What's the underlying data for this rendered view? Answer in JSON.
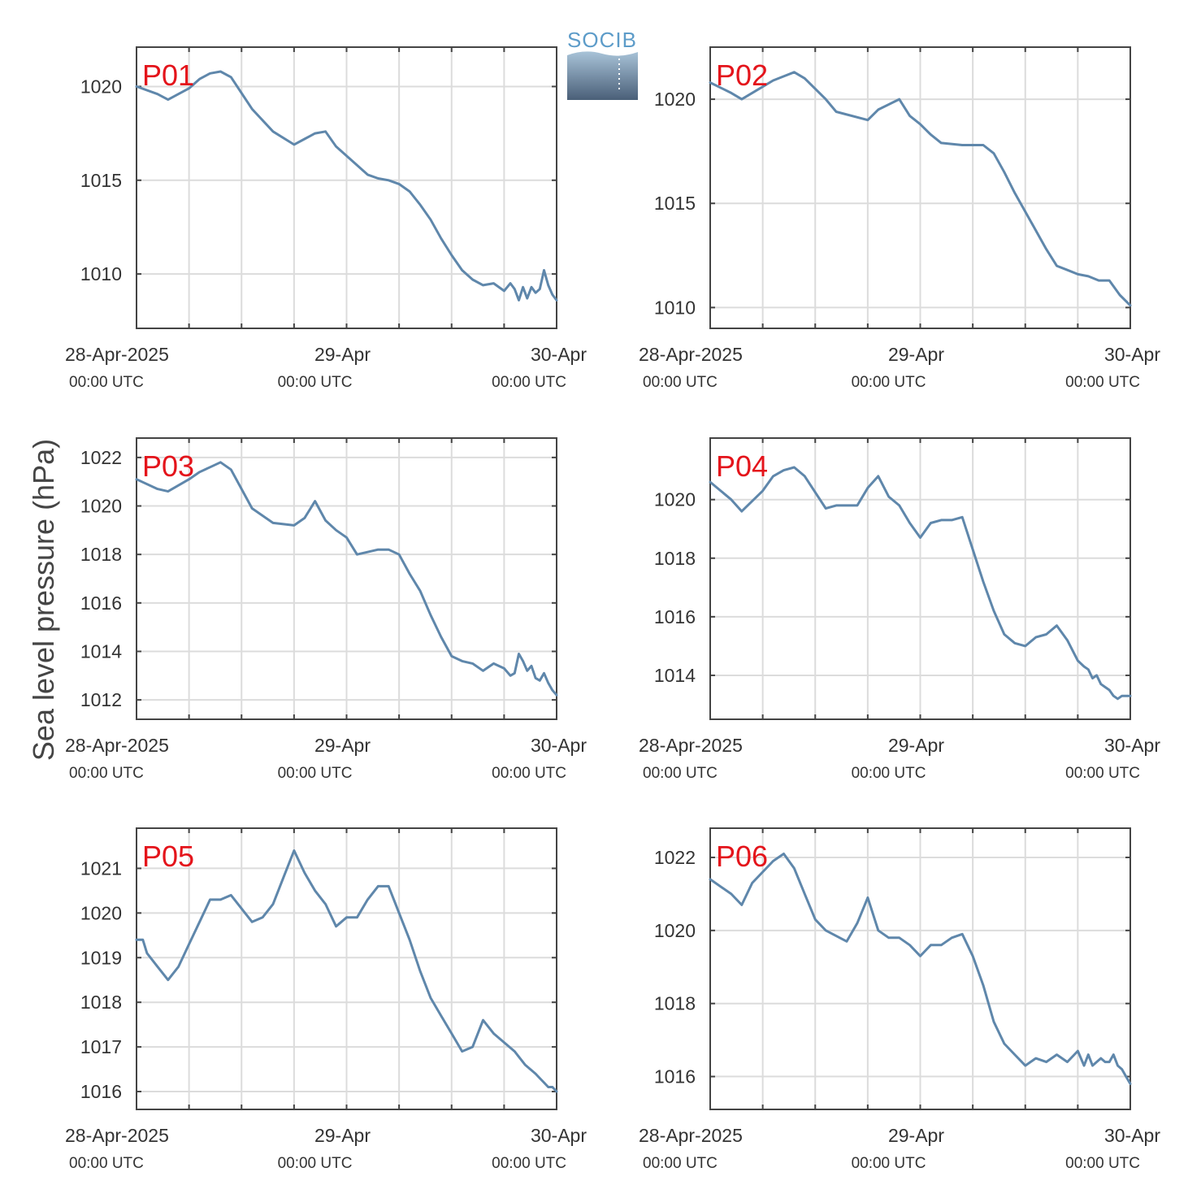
{
  "logo": {
    "text": "SOCIB"
  },
  "ylabel": "Sea level pressure (hPa)",
  "x_ticks": [
    {
      "main": "28-Apr-2025",
      "sub": "00:00 UTC"
    },
    {
      "main": "29-Apr",
      "sub": "00:00 UTC"
    },
    {
      "main": "30-Apr",
      "sub": "00:00 UTC"
    }
  ],
  "colors": {
    "line": "#5f87ab",
    "label": "#e4141b",
    "grid": "#dcdcdc",
    "axis": "#444444"
  },
  "chart_data": [
    {
      "type": "line",
      "label": "P01",
      "ylim": [
        1007.1,
        1022.1
      ],
      "yticks": [
        1010,
        1015,
        1020
      ],
      "ylabel": "Sea level pressure (hPa)",
      "x": [
        0,
        0.1,
        0.15,
        0.25,
        0.3,
        0.35,
        0.4,
        0.45,
        0.55,
        0.65,
        0.75,
        0.8,
        0.85,
        0.9,
        0.95,
        1.0,
        1.05,
        1.1,
        1.15,
        1.2,
        1.25,
        1.3,
        1.35,
        1.4,
        1.45,
        1.5,
        1.55,
        1.6,
        1.65,
        1.7,
        1.75,
        1.78,
        1.8,
        1.82,
        1.84,
        1.86,
        1.88,
        1.9,
        1.92,
        1.94,
        1.96,
        1.98,
        2.0
      ],
      "y": [
        1020.0,
        1019.6,
        1019.3,
        1019.9,
        1020.4,
        1020.7,
        1020.8,
        1020.5,
        1018.8,
        1017.6,
        1016.9,
        1017.2,
        1017.5,
        1017.6,
        1016.8,
        1016.3,
        1015.8,
        1015.3,
        1015.1,
        1015.0,
        1014.8,
        1014.4,
        1013.7,
        1012.9,
        1011.9,
        1011.0,
        1010.2,
        1009.7,
        1009.4,
        1009.5,
        1009.1,
        1009.5,
        1009.2,
        1008.6,
        1009.3,
        1008.7,
        1009.3,
        1009.0,
        1009.2,
        1010.2,
        1009.4,
        1008.9,
        1008.6
      ]
    },
    {
      "type": "line",
      "label": "P02",
      "ylim": [
        1009.0,
        1022.5
      ],
      "yticks": [
        1010,
        1015,
        1020
      ],
      "x": [
        0,
        0.1,
        0.15,
        0.25,
        0.3,
        0.35,
        0.4,
        0.45,
        0.55,
        0.6,
        0.75,
        0.8,
        0.9,
        0.95,
        1.0,
        1.05,
        1.1,
        1.2,
        1.25,
        1.3,
        1.35,
        1.4,
        1.45,
        1.5,
        1.55,
        1.6,
        1.65,
        1.7,
        1.75,
        1.8,
        1.85,
        1.9,
        1.95,
        2.0
      ],
      "y": [
        1020.8,
        1020.3,
        1020.0,
        1020.6,
        1020.9,
        1021.1,
        1021.3,
        1021.0,
        1020.0,
        1019.4,
        1019.0,
        1019.5,
        1020.0,
        1019.2,
        1018.8,
        1018.3,
        1017.9,
        1017.8,
        1017.8,
        1017.8,
        1017.4,
        1016.5,
        1015.5,
        1014.6,
        1013.7,
        1012.8,
        1012.0,
        1011.8,
        1011.6,
        1011.5,
        1011.3,
        1011.3,
        1010.6,
        1010.1
      ]
    },
    {
      "type": "line",
      "label": "P03",
      "ylim": [
        1011.2,
        1022.8
      ],
      "yticks": [
        1012,
        1014,
        1016,
        1018,
        1020,
        1022
      ],
      "x": [
        0,
        0.1,
        0.15,
        0.25,
        0.3,
        0.35,
        0.4,
        0.45,
        0.55,
        0.65,
        0.75,
        0.8,
        0.85,
        0.9,
        0.95,
        1.0,
        1.05,
        1.15,
        1.2,
        1.25,
        1.3,
        1.35,
        1.4,
        1.45,
        1.5,
        1.55,
        1.6,
        1.65,
        1.7,
        1.75,
        1.78,
        1.8,
        1.82,
        1.84,
        1.86,
        1.88,
        1.9,
        1.92,
        1.94,
        1.96,
        1.98,
        2.0
      ],
      "y": [
        1021.1,
        1020.7,
        1020.6,
        1021.1,
        1021.4,
        1021.6,
        1021.8,
        1021.5,
        1019.9,
        1019.3,
        1019.2,
        1019.5,
        1020.2,
        1019.4,
        1019.0,
        1018.7,
        1018.0,
        1018.2,
        1018.2,
        1018.0,
        1017.2,
        1016.5,
        1015.5,
        1014.6,
        1013.8,
        1013.6,
        1013.5,
        1013.2,
        1013.5,
        1013.3,
        1013.0,
        1013.1,
        1013.9,
        1013.6,
        1013.2,
        1013.4,
        1012.9,
        1012.8,
        1013.1,
        1012.7,
        1012.4,
        1012.2
      ]
    },
    {
      "type": "line",
      "label": "P04",
      "ylim": [
        1012.5,
        1022.1
      ],
      "yticks": [
        1014,
        1016,
        1018,
        1020
      ],
      "x": [
        0,
        0.1,
        0.15,
        0.25,
        0.3,
        0.35,
        0.4,
        0.45,
        0.55,
        0.6,
        0.7,
        0.75,
        0.8,
        0.85,
        0.9,
        0.95,
        1.0,
        1.05,
        1.1,
        1.15,
        1.2,
        1.25,
        1.3,
        1.35,
        1.4,
        1.45,
        1.5,
        1.55,
        1.6,
        1.65,
        1.7,
        1.75,
        1.78,
        1.8,
        1.82,
        1.84,
        1.86,
        1.88,
        1.9,
        1.92,
        1.94,
        1.96,
        1.98,
        2.0
      ],
      "y": [
        1020.6,
        1020.0,
        1019.6,
        1020.3,
        1020.8,
        1021.0,
        1021.1,
        1020.8,
        1019.7,
        1019.8,
        1019.8,
        1020.4,
        1020.8,
        1020.1,
        1019.8,
        1019.2,
        1018.7,
        1019.2,
        1019.3,
        1019.3,
        1019.4,
        1018.3,
        1017.2,
        1016.2,
        1015.4,
        1015.1,
        1015.0,
        1015.3,
        1015.4,
        1015.7,
        1015.2,
        1014.5,
        1014.3,
        1014.2,
        1013.9,
        1014.0,
        1013.7,
        1013.6,
        1013.5,
        1013.3,
        1013.2,
        1013.3,
        1013.3,
        1013.3
      ]
    },
    {
      "type": "line",
      "label": "P05",
      "ylim": [
        1015.6,
        1021.9
      ],
      "yticks": [
        1016,
        1017,
        1018,
        1019,
        1020,
        1021
      ],
      "x": [
        0,
        0.03,
        0.05,
        0.1,
        0.15,
        0.2,
        0.25,
        0.3,
        0.35,
        0.4,
        0.45,
        0.5,
        0.55,
        0.6,
        0.65,
        0.7,
        0.75,
        0.8,
        0.85,
        0.9,
        0.95,
        1.0,
        1.05,
        1.1,
        1.15,
        1.2,
        1.25,
        1.3,
        1.35,
        1.4,
        1.45,
        1.5,
        1.55,
        1.6,
        1.65,
        1.7,
        1.75,
        1.8,
        1.85,
        1.9,
        1.92,
        1.94,
        1.96,
        1.98,
        2.0
      ],
      "y": [
        1019.4,
        1019.4,
        1019.1,
        1018.8,
        1018.5,
        1018.8,
        1019.3,
        1019.8,
        1020.3,
        1020.3,
        1020.4,
        1020.1,
        1019.8,
        1019.9,
        1020.2,
        1020.8,
        1021.4,
        1020.9,
        1020.5,
        1020.2,
        1019.7,
        1019.9,
        1019.9,
        1020.3,
        1020.6,
        1020.6,
        1020.0,
        1019.4,
        1018.7,
        1018.1,
        1017.7,
        1017.3,
        1016.9,
        1017.0,
        1017.6,
        1017.3,
        1017.1,
        1016.9,
        1016.6,
        1016.4,
        1016.3,
        1016.2,
        1016.1,
        1016.1,
        1016.0
      ]
    },
    {
      "type": "line",
      "label": "P06",
      "ylim": [
        1015.1,
        1022.8
      ],
      "yticks": [
        1016,
        1018,
        1020,
        1022
      ],
      "x": [
        0,
        0.1,
        0.15,
        0.2,
        0.25,
        0.3,
        0.35,
        0.4,
        0.45,
        0.5,
        0.55,
        0.65,
        0.7,
        0.75,
        0.8,
        0.85,
        0.9,
        0.95,
        1.0,
        1.05,
        1.1,
        1.15,
        1.2,
        1.25,
        1.3,
        1.35,
        1.4,
        1.45,
        1.5,
        1.55,
        1.6,
        1.65,
        1.7,
        1.75,
        1.78,
        1.8,
        1.82,
        1.84,
        1.86,
        1.88,
        1.9,
        1.92,
        1.94,
        1.96,
        1.98,
        2.0
      ],
      "y": [
        1021.4,
        1021.0,
        1020.7,
        1021.3,
        1021.6,
        1021.9,
        1022.1,
        1021.7,
        1021.0,
        1020.3,
        1020.0,
        1019.7,
        1020.2,
        1020.9,
        1020.0,
        1019.8,
        1019.8,
        1019.6,
        1019.3,
        1019.6,
        1019.6,
        1019.8,
        1019.9,
        1019.3,
        1018.5,
        1017.5,
        1016.9,
        1016.6,
        1016.3,
        1016.5,
        1016.4,
        1016.6,
        1016.4,
        1016.7,
        1016.3,
        1016.6,
        1016.3,
        1016.4,
        1016.5,
        1016.4,
        1016.4,
        1016.6,
        1016.3,
        1016.2,
        1016.0,
        1015.8
      ]
    }
  ]
}
